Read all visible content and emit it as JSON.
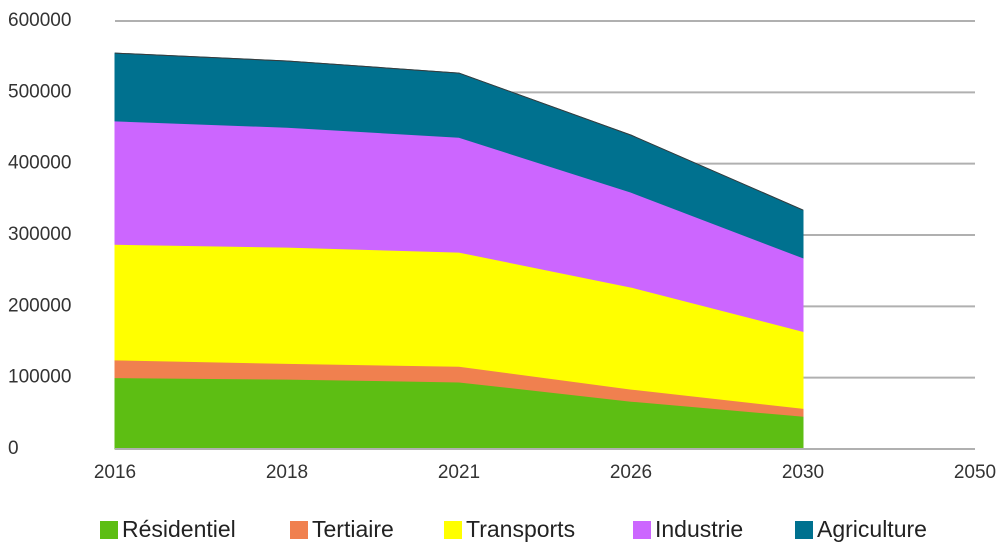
{
  "chart_data": {
    "type": "stacked_area",
    "categories": [
      "2016",
      "2018",
      "2021",
      "2026",
      "2030",
      "2050"
    ],
    "series": [
      {
        "name": "Résidentiel",
        "color": "#5dbe13",
        "values": [
          100000,
          98000,
          94000,
          67000,
          46000,
          null
        ]
      },
      {
        "name": "Tertiaire",
        "color": "#f0804f",
        "values": [
          25000,
          22000,
          22000,
          17000,
          11000,
          null
        ]
      },
      {
        "name": "Transports",
        "color": "#ffff00",
        "values": [
          162000,
          163000,
          160000,
          143000,
          108000,
          null
        ]
      },
      {
        "name": "Industrie",
        "color": "#cc66ff",
        "values": [
          173000,
          168000,
          161000,
          133000,
          103000,
          null
        ]
      },
      {
        "name": "Agriculture",
        "color": "#00718f",
        "values": [
          95000,
          93000,
          90000,
          80000,
          67000,
          null
        ]
      }
    ],
    "ylim": [
      0,
      600000
    ],
    "yticks": [
      0,
      100000,
      200000,
      300000,
      400000,
      500000,
      600000
    ],
    "grid": true,
    "legend": "bottom"
  }
}
